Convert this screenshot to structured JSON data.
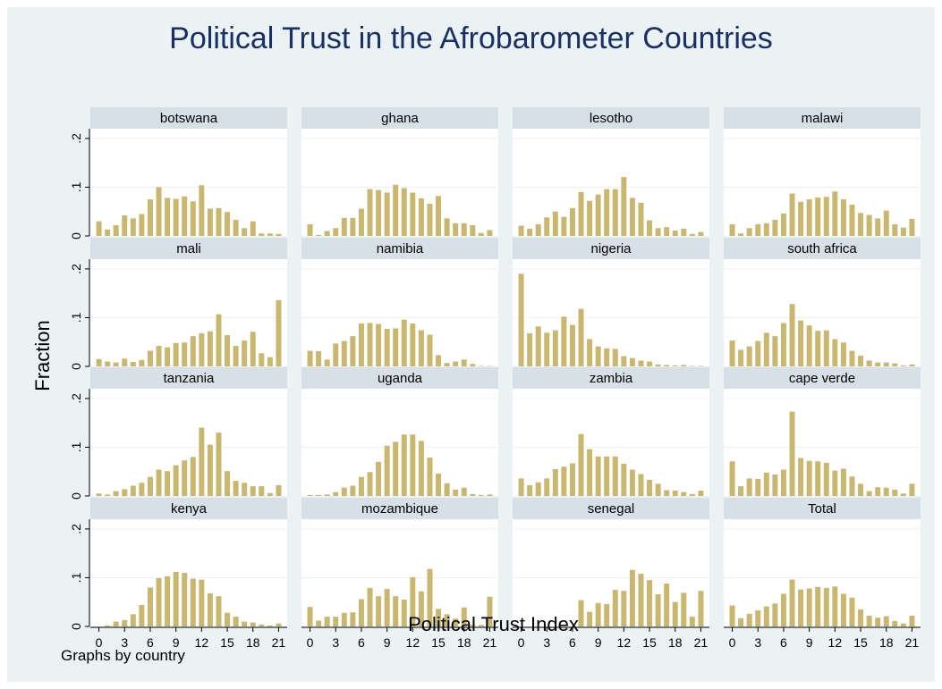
{
  "title": "Political Trust in the Afrobarometer Countries",
  "note": "Graphs by country",
  "colors": {
    "bar": "#c9b770",
    "background": "#eaf2f3",
    "strip": "#d6e0e6",
    "title": "#1a2f63",
    "panel": "#ffffff"
  },
  "chart_data": {
    "type": "bar",
    "title": "Political Trust in the Afrobarometer Countries",
    "xlabel": "Political Trust Index",
    "ylabel": "Fraction",
    "x": [
      0,
      1,
      2,
      3,
      4,
      5,
      6,
      7,
      8,
      9,
      10,
      11,
      12,
      13,
      14,
      15,
      16,
      17,
      18,
      19,
      20,
      21
    ],
    "xticks": [
      "0",
      "3",
      "6",
      "9",
      "12",
      "15",
      "18",
      "21"
    ],
    "xtick_values": [
      0,
      3,
      6,
      9,
      12,
      15,
      18,
      21
    ],
    "yticks": [
      "0",
      ".1",
      ".2"
    ],
    "ytick_values": [
      0,
      0.1,
      0.2
    ],
    "ylim": [
      0,
      0.22
    ],
    "grid": true,
    "series": [
      {
        "name": "botswana",
        "values": [
          0.03,
          0.013,
          0.022,
          0.042,
          0.036,
          0.045,
          0.075,
          0.1,
          0.078,
          0.076,
          0.081,
          0.071,
          0.104,
          0.056,
          0.057,
          0.049,
          0.033,
          0.016,
          0.03,
          0.005,
          0.005,
          0.004
        ]
      },
      {
        "name": "ghana",
        "values": [
          0.024,
          0.002,
          0.01,
          0.016,
          0.037,
          0.037,
          0.056,
          0.096,
          0.094,
          0.089,
          0.105,
          0.098,
          0.089,
          0.077,
          0.066,
          0.082,
          0.036,
          0.026,
          0.026,
          0.022,
          0.006,
          0.012
        ]
      },
      {
        "name": "lesotho",
        "values": [
          0.021,
          0.015,
          0.024,
          0.038,
          0.05,
          0.039,
          0.057,
          0.09,
          0.072,
          0.085,
          0.096,
          0.096,
          0.121,
          0.078,
          0.068,
          0.032,
          0.016,
          0.018,
          0.011,
          0.015,
          0.004,
          0.008
        ]
      },
      {
        "name": "malawi",
        "values": [
          0.024,
          0.005,
          0.016,
          0.024,
          0.026,
          0.033,
          0.046,
          0.087,
          0.07,
          0.075,
          0.079,
          0.08,
          0.091,
          0.075,
          0.064,
          0.047,
          0.043,
          0.036,
          0.052,
          0.024,
          0.017,
          0.035
        ]
      },
      {
        "name": "mali",
        "values": [
          0.015,
          0.01,
          0.008,
          0.016,
          0.009,
          0.013,
          0.032,
          0.042,
          0.039,
          0.048,
          0.049,
          0.062,
          0.068,
          0.072,
          0.107,
          0.064,
          0.042,
          0.053,
          0.071,
          0.027,
          0.019,
          0.136
        ]
      },
      {
        "name": "namibia",
        "values": [
          0.032,
          0.031,
          0.014,
          0.047,
          0.052,
          0.062,
          0.088,
          0.089,
          0.087,
          0.077,
          0.078,
          0.096,
          0.088,
          0.074,
          0.065,
          0.023,
          0.007,
          0.01,
          0.014,
          0.005,
          0.001,
          0.001
        ]
      },
      {
        "name": "nigeria",
        "values": [
          0.19,
          0.068,
          0.082,
          0.069,
          0.074,
          0.102,
          0.085,
          0.118,
          0.056,
          0.041,
          0.037,
          0.036,
          0.021,
          0.017,
          0.012,
          0.01,
          0.004,
          0.003,
          0.002,
          0.003,
          0.001,
          0.001
        ]
      },
      {
        "name": "south africa",
        "values": [
          0.053,
          0.034,
          0.041,
          0.052,
          0.069,
          0.062,
          0.089,
          0.128,
          0.094,
          0.084,
          0.073,
          0.074,
          0.056,
          0.049,
          0.032,
          0.022,
          0.012,
          0.008,
          0.008,
          0.006,
          0.002,
          0.004
        ]
      },
      {
        "name": "tanzania",
        "values": [
          0.005,
          0.003,
          0.01,
          0.014,
          0.021,
          0.027,
          0.039,
          0.054,
          0.051,
          0.063,
          0.073,
          0.08,
          0.14,
          0.105,
          0.13,
          0.051,
          0.031,
          0.027,
          0.02,
          0.02,
          0.006,
          0.022
        ]
      },
      {
        "name": "uganda",
        "values": [
          0.002,
          0.002,
          0.003,
          0.008,
          0.017,
          0.021,
          0.039,
          0.049,
          0.07,
          0.103,
          0.111,
          0.126,
          0.126,
          0.113,
          0.079,
          0.046,
          0.026,
          0.013,
          0.017,
          0.004,
          0.002,
          0.003
        ]
      },
      {
        "name": "zambia",
        "values": [
          0.036,
          0.022,
          0.028,
          0.036,
          0.055,
          0.06,
          0.067,
          0.127,
          0.096,
          0.081,
          0.081,
          0.081,
          0.066,
          0.054,
          0.045,
          0.033,
          0.025,
          0.012,
          0.011,
          0.008,
          0.004,
          0.011
        ]
      },
      {
        "name": "cape verde",
        "values": [
          0.071,
          0.02,
          0.036,
          0.035,
          0.048,
          0.044,
          0.054,
          0.173,
          0.078,
          0.072,
          0.071,
          0.068,
          0.052,
          0.056,
          0.04,
          0.025,
          0.01,
          0.018,
          0.017,
          0.013,
          0.005,
          0.025
        ]
      },
      {
        "name": "kenya",
        "values": [
          0.0,
          0.002,
          0.01,
          0.013,
          0.025,
          0.044,
          0.08,
          0.099,
          0.103,
          0.112,
          0.11,
          0.098,
          0.096,
          0.068,
          0.062,
          0.028,
          0.02,
          0.01,
          0.008,
          0.004,
          0.002,
          0.006
        ]
      },
      {
        "name": "mozambique",
        "values": [
          0.04,
          0.012,
          0.02,
          0.02,
          0.028,
          0.029,
          0.056,
          0.079,
          0.062,
          0.077,
          0.062,
          0.055,
          0.101,
          0.072,
          0.118,
          0.036,
          0.025,
          0.016,
          0.039,
          0.003,
          0.003,
          0.061
        ]
      },
      {
        "name": "senegal",
        "values": [
          0.0,
          0.0,
          0.0,
          0.0,
          0.0,
          0.0,
          0.0,
          0.054,
          0.03,
          0.048,
          0.046,
          0.075,
          0.073,
          0.116,
          0.108,
          0.095,
          0.066,
          0.088,
          0.05,
          0.069,
          0.02,
          0.073
        ]
      },
      {
        "name": "Total",
        "values": [
          0.043,
          0.017,
          0.026,
          0.033,
          0.041,
          0.047,
          0.067,
          0.096,
          0.076,
          0.078,
          0.081,
          0.079,
          0.082,
          0.067,
          0.059,
          0.035,
          0.022,
          0.018,
          0.021,
          0.011,
          0.006,
          0.022
        ]
      }
    ]
  }
}
